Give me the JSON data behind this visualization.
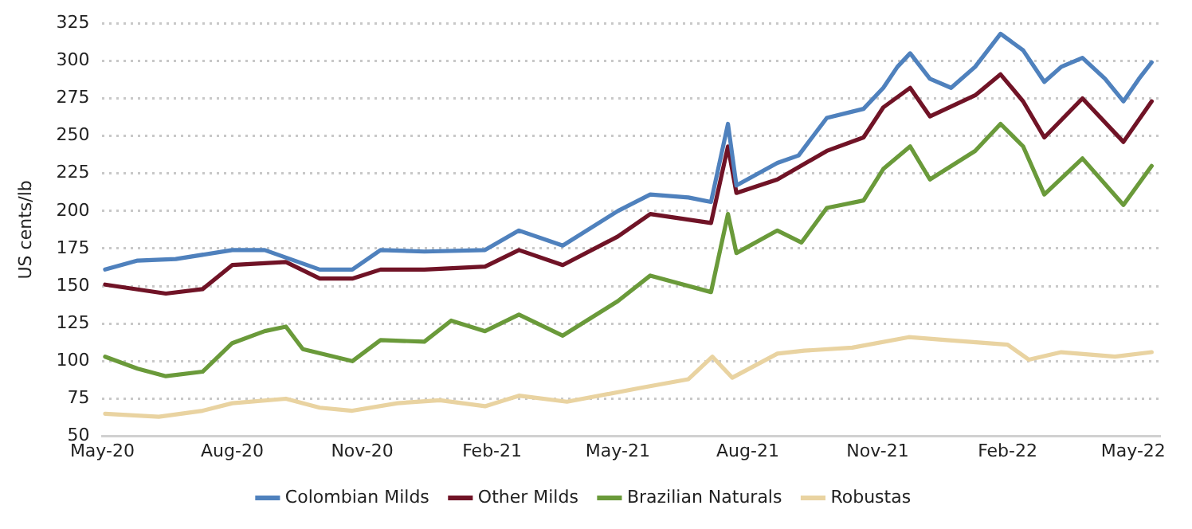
{
  "chart_data": {
    "type": "line",
    "ylabel": "US cents/lb",
    "xlim": [
      "2020-05-01",
      "2022-05-20"
    ],
    "xticks": [
      {
        "value": "2020-05-01",
        "label": "May-20"
      },
      {
        "value": "2020-08-01",
        "label": "Aug-20"
      },
      {
        "value": "2020-11-01",
        "label": "Nov-20"
      },
      {
        "value": "2021-02-01",
        "label": "Feb-21"
      },
      {
        "value": "2021-05-01",
        "label": "May-21"
      },
      {
        "value": "2021-08-01",
        "label": "Aug-21"
      },
      {
        "value": "2021-11-01",
        "label": "Nov-21"
      },
      {
        "value": "2022-02-01",
        "label": "Feb-22"
      },
      {
        "value": "2022-05-01",
        "label": "May-22"
      }
    ],
    "ylim": [
      50,
      325
    ],
    "yticks": [
      50,
      75,
      100,
      125,
      150,
      175,
      200,
      225,
      250,
      275,
      300,
      325
    ],
    "grid": "y",
    "legend": "bottom",
    "marker": "none",
    "line_style": "solid",
    "series": [
      {
        "name": "Colombian Milds",
        "color": "#4f81bd",
        "x": [
          "2020-05-03",
          "2020-05-26",
          "2020-06-22",
          "2020-08-01",
          "2020-08-24",
          "2020-10-02",
          "2020-10-25",
          "2020-11-14",
          "2020-12-15",
          "2021-01-27",
          "2021-02-20",
          "2021-03-23",
          "2021-05-01",
          "2021-05-24",
          "2021-06-20",
          "2021-07-06",
          "2021-07-18",
          "2021-07-24",
          "2021-08-22",
          "2021-09-06",
          "2021-09-26",
          "2021-10-22",
          "2021-11-05",
          "2021-11-15",
          "2021-11-24",
          "2021-12-08",
          "2021-12-23",
          "2022-01-09",
          "2022-01-27",
          "2022-02-12",
          "2022-02-27",
          "2022-03-11",
          "2022-03-26",
          "2022-04-11",
          "2022-04-24",
          "2022-05-05",
          "2022-05-14"
        ],
        "values": [
          161,
          167,
          168,
          174,
          174,
          161,
          161,
          174,
          173,
          174,
          187,
          177,
          200,
          211,
          209,
          206,
          258,
          217,
          232,
          237,
          262,
          268,
          282,
          296,
          305,
          288,
          282,
          296,
          318,
          307,
          286,
          296,
          302,
          288,
          273,
          288,
          299
        ]
      },
      {
        "name": "Other Milds",
        "color": "#701326",
        "x": [
          "2020-05-03",
          "2020-06-15",
          "2020-07-11",
          "2020-08-01",
          "2020-09-08",
          "2020-10-02",
          "2020-10-25",
          "2020-11-14",
          "2020-12-15",
          "2021-01-27",
          "2021-02-20",
          "2021-03-23",
          "2021-05-01",
          "2021-05-24",
          "2021-07-06",
          "2021-07-18",
          "2021-07-24",
          "2021-08-22",
          "2021-09-26",
          "2021-10-22",
          "2021-11-05",
          "2021-11-24",
          "2021-12-08",
          "2022-01-09",
          "2022-01-27",
          "2022-02-12",
          "2022-02-27",
          "2022-03-26",
          "2022-04-24",
          "2022-05-14"
        ],
        "values": [
          151,
          145,
          148,
          164,
          166,
          155,
          155,
          161,
          161,
          163,
          174,
          164,
          183,
          198,
          192,
          243,
          212,
          221,
          240,
          249,
          269,
          282,
          263,
          277,
          291,
          273,
          249,
          275,
          246,
          273
        ]
      },
      {
        "name": "Brazilian Naturals",
        "color": "#6a9a3a",
        "x": [
          "2020-05-03",
          "2020-05-26",
          "2020-06-15",
          "2020-07-11",
          "2020-08-01",
          "2020-08-24",
          "2020-09-08",
          "2020-09-20",
          "2020-10-25",
          "2020-11-14",
          "2020-12-15",
          "2021-01-03",
          "2021-01-27",
          "2021-02-20",
          "2021-03-23",
          "2021-05-01",
          "2021-05-24",
          "2021-07-06",
          "2021-07-18",
          "2021-07-24",
          "2021-08-22",
          "2021-09-08",
          "2021-09-26",
          "2021-10-22",
          "2021-11-05",
          "2021-11-24",
          "2021-12-08",
          "2022-01-09",
          "2022-01-27",
          "2022-02-12",
          "2022-02-27",
          "2022-03-26",
          "2022-04-24",
          "2022-05-14"
        ],
        "values": [
          103,
          95,
          90,
          93,
          112,
          120,
          123,
          108,
          100,
          114,
          113,
          127,
          120,
          131,
          117,
          140,
          157,
          146,
          198,
          172,
          187,
          179,
          202,
          207,
          228,
          243,
          221,
          240,
          258,
          243,
          211,
          235,
          204,
          230
        ]
      },
      {
        "name": "Robustas",
        "color": "#e9d3a1",
        "x": [
          "2020-05-03",
          "2020-06-10",
          "2020-07-11",
          "2020-08-01",
          "2020-09-08",
          "2020-10-02",
          "2020-10-25",
          "2020-11-26",
          "2020-12-26",
          "2021-01-27",
          "2021-02-20",
          "2021-03-26",
          "2021-05-16",
          "2021-06-20",
          "2021-07-07",
          "2021-07-21",
          "2021-08-22",
          "2021-09-10",
          "2021-10-14",
          "2021-11-23",
          "2021-12-20",
          "2022-02-01",
          "2022-02-16",
          "2022-03-11",
          "2022-04-18",
          "2022-05-14"
        ],
        "values": [
          65,
          63,
          67,
          72,
          75,
          69,
          67,
          72,
          74,
          70,
          77,
          73,
          82,
          88,
          103,
          89,
          105,
          107,
          109,
          116,
          114,
          111,
          101,
          106,
          103,
          106
        ]
      }
    ]
  }
}
